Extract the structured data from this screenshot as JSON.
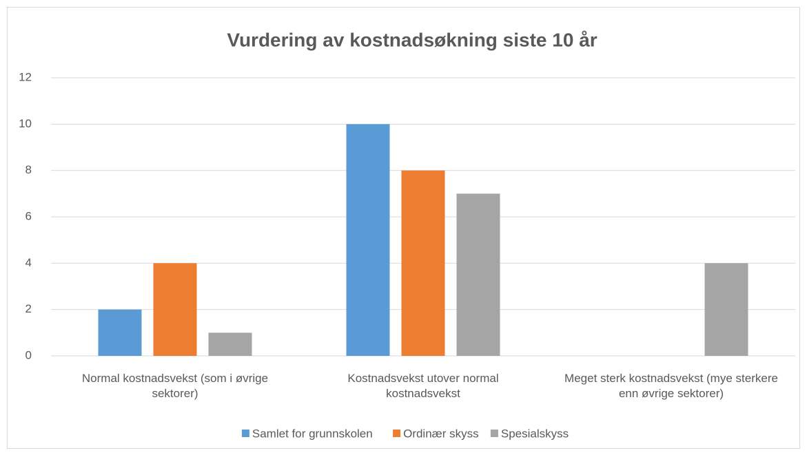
{
  "chart_data": {
    "type": "bar",
    "title": "Vurdering av kostnadsøkning siste 10 år",
    "categories": [
      "Normal kostnadsvekst (som i øvrige sektorer)",
      "Kostnadsvekst utover normal kostnadsvekst",
      "Meget sterk kostnadsvekst (mye sterkere enn øvrige sektorer)"
    ],
    "series": [
      {
        "name": "Samlet for grunnskolen",
        "color": "#5b9bd5",
        "values": [
          2,
          10,
          0
        ]
      },
      {
        "name": "Ordinær skyss",
        "color": "#ed7d31",
        "values": [
          4,
          8,
          0
        ]
      },
      {
        "name": "Spesialskyss",
        "color": "#a5a5a5",
        "values": [
          1,
          7,
          4
        ]
      }
    ],
    "ylim": [
      0,
      12
    ],
    "yticks": [
      0,
      2,
      4,
      6,
      8,
      10,
      12
    ],
    "grid": true,
    "legend": "bottom"
  }
}
